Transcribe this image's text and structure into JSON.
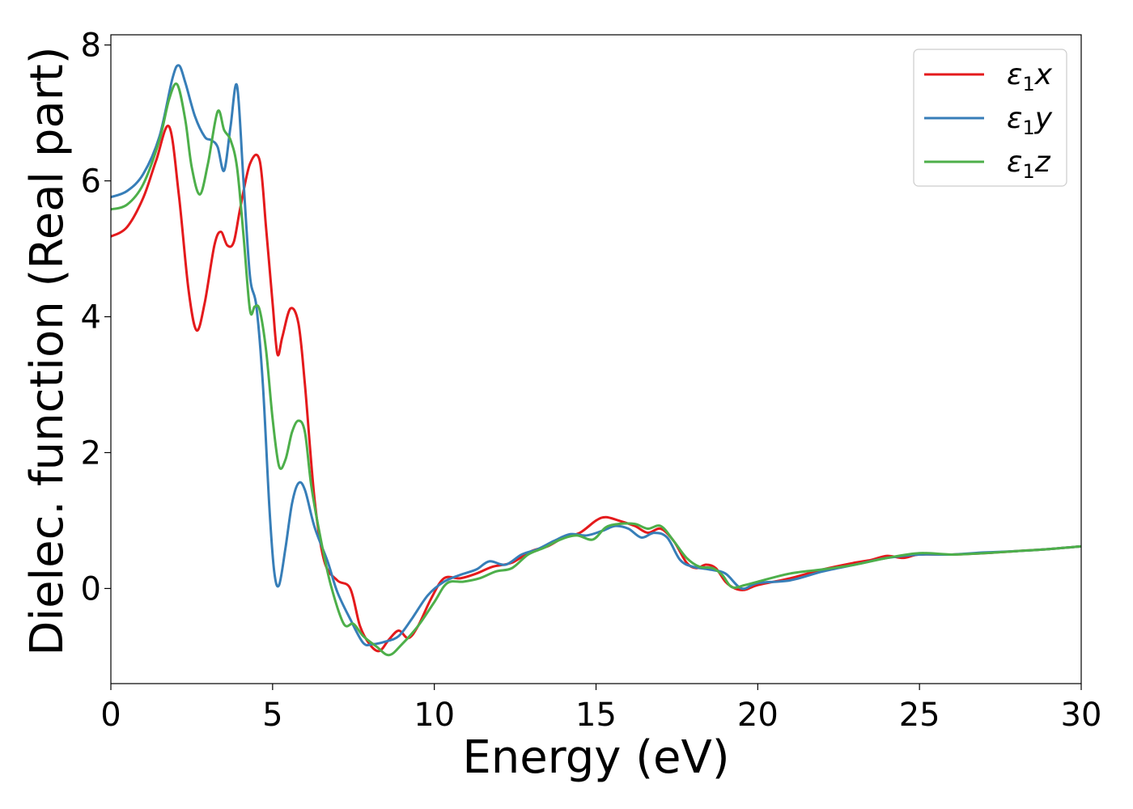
{
  "chart_data": {
    "type": "line",
    "title": "",
    "xlabel": "Energy (eV)",
    "ylabel": "Dielec. function (Real part)",
    "xlim": [
      0,
      30
    ],
    "ylim": [
      -1.4,
      8.15
    ],
    "xticks": [
      0,
      5,
      10,
      15,
      20,
      25,
      30
    ],
    "yticks": [
      0,
      2,
      4,
      6,
      8
    ],
    "grid": false,
    "legend_position": "top-right",
    "series": [
      {
        "name": "ε1x",
        "legend_base": "ε",
        "legend_sub": "1",
        "legend_var": "x",
        "color": "#e41a1c",
        "x": [
          0,
          0.5,
          1.0,
          1.4,
          1.8,
          2.1,
          2.4,
          2.65,
          2.9,
          3.2,
          3.4,
          3.6,
          3.8,
          4.0,
          4.3,
          4.6,
          4.8,
          5.0,
          5.15,
          5.3,
          5.55,
          5.8,
          6.0,
          6.3,
          6.6,
          7.0,
          7.4,
          7.7,
          8.0,
          8.3,
          8.6,
          8.9,
          9.2,
          9.5,
          9.9,
          10.3,
          10.8,
          11.3,
          11.8,
          12.4,
          13.0,
          13.5,
          14.0,
          14.5,
          15.0,
          15.3,
          15.7,
          16.2,
          16.6,
          17.0,
          17.4,
          17.8,
          18.1,
          18.4,
          18.7,
          19.0,
          19.3,
          19.6,
          20.0,
          21.0,
          22.0,
          23.0,
          23.5,
          24.0,
          24.5,
          25.0,
          26.0,
          27.0,
          28.0,
          29.0,
          30.0
        ],
        "values": [
          5.18,
          5.32,
          5.75,
          6.3,
          6.8,
          5.8,
          4.4,
          3.8,
          4.2,
          5.05,
          5.25,
          5.05,
          5.1,
          5.6,
          6.25,
          6.3,
          5.3,
          4.2,
          3.45,
          3.7,
          4.12,
          3.9,
          3.0,
          1.3,
          0.4,
          0.12,
          0.0,
          -0.55,
          -0.82,
          -0.92,
          -0.75,
          -0.62,
          -0.73,
          -0.55,
          -0.15,
          0.15,
          0.15,
          0.22,
          0.32,
          0.38,
          0.55,
          0.62,
          0.75,
          0.82,
          1.0,
          1.05,
          1.0,
          0.92,
          0.82,
          0.88,
          0.7,
          0.38,
          0.3,
          0.35,
          0.3,
          0.1,
          0.0,
          -0.02,
          0.05,
          0.15,
          0.28,
          0.38,
          0.42,
          0.48,
          0.45,
          0.5,
          0.5,
          0.52,
          0.55,
          0.58,
          0.62
        ]
      },
      {
        "name": "ε1y",
        "legend_base": "ε",
        "legend_sub": "1",
        "legend_var": "y",
        "color": "#377eb8",
        "x": [
          0,
          0.5,
          1.0,
          1.5,
          1.9,
          2.1,
          2.3,
          2.6,
          2.9,
          3.1,
          3.3,
          3.5,
          3.7,
          3.9,
          4.1,
          4.3,
          4.5,
          4.7,
          4.9,
          5.05,
          5.2,
          5.4,
          5.6,
          5.8,
          6.0,
          6.3,
          6.7,
          7.0,
          7.4,
          7.8,
          8.1,
          8.5,
          8.9,
          9.3,
          9.8,
          10.3,
          10.8,
          11.3,
          11.7,
          12.2,
          12.7,
          13.2,
          13.7,
          14.2,
          14.7,
          15.2,
          15.6,
          16.0,
          16.4,
          16.8,
          17.2,
          17.6,
          18.0,
          18.5,
          19.0,
          19.5,
          20.0,
          21.0,
          22.0,
          23.0,
          24.0,
          25.0,
          26.0,
          27.0,
          28.0,
          29.0,
          30.0
        ],
        "values": [
          5.76,
          5.85,
          6.1,
          6.65,
          7.5,
          7.7,
          7.45,
          6.95,
          6.65,
          6.6,
          6.5,
          6.15,
          6.8,
          7.4,
          6.0,
          4.6,
          4.15,
          3.0,
          1.2,
          0.25,
          0.05,
          0.6,
          1.25,
          1.55,
          1.45,
          0.9,
          0.4,
          -0.05,
          -0.45,
          -0.8,
          -0.82,
          -0.78,
          -0.7,
          -0.45,
          -0.1,
          0.1,
          0.2,
          0.28,
          0.4,
          0.35,
          0.5,
          0.58,
          0.7,
          0.8,
          0.78,
          0.85,
          0.92,
          0.88,
          0.75,
          0.82,
          0.75,
          0.42,
          0.32,
          0.28,
          0.22,
          0.0,
          0.08,
          0.12,
          0.25,
          0.35,
          0.45,
          0.5,
          0.5,
          0.53,
          0.55,
          0.58,
          0.62
        ]
      },
      {
        "name": "ε1z",
        "legend_base": "ε",
        "legend_sub": "1",
        "legend_var": "z",
        "color": "#4daf4a",
        "x": [
          0,
          0.5,
          1.0,
          1.5,
          1.8,
          2.05,
          2.3,
          2.5,
          2.75,
          3.0,
          3.3,
          3.5,
          3.7,
          3.9,
          4.1,
          4.3,
          4.45,
          4.6,
          4.8,
          5.0,
          5.2,
          5.4,
          5.6,
          5.8,
          6.0,
          6.2,
          6.5,
          6.8,
          7.2,
          7.5,
          7.8,
          8.2,
          8.6,
          9.0,
          9.5,
          10.0,
          10.4,
          10.9,
          11.4,
          11.9,
          12.4,
          12.9,
          13.4,
          13.9,
          14.4,
          14.9,
          15.3,
          15.7,
          16.2,
          16.6,
          17.0,
          17.4,
          17.8,
          18.2,
          18.6,
          18.9,
          19.2,
          19.6,
          20.0,
          21.0,
          22.0,
          23.0,
          24.0,
          25.0,
          26.0,
          27.0,
          28.0,
          29.0,
          30.0
        ],
        "values": [
          5.58,
          5.65,
          5.95,
          6.6,
          7.2,
          7.42,
          6.9,
          6.2,
          5.8,
          6.25,
          7.02,
          6.75,
          6.6,
          6.2,
          5.2,
          4.1,
          4.15,
          4.1,
          3.5,
          2.5,
          1.8,
          1.9,
          2.3,
          2.47,
          2.3,
          1.5,
          0.7,
          0.05,
          -0.52,
          -0.52,
          -0.7,
          -0.85,
          -0.98,
          -0.82,
          -0.55,
          -0.2,
          0.08,
          0.1,
          0.15,
          0.25,
          0.3,
          0.5,
          0.6,
          0.72,
          0.78,
          0.72,
          0.9,
          0.95,
          0.95,
          0.88,
          0.92,
          0.7,
          0.45,
          0.32,
          0.3,
          0.2,
          0.02,
          0.05,
          0.1,
          0.22,
          0.28,
          0.35,
          0.45,
          0.52,
          0.5,
          0.52,
          0.55,
          0.58,
          0.62
        ]
      }
    ]
  }
}
